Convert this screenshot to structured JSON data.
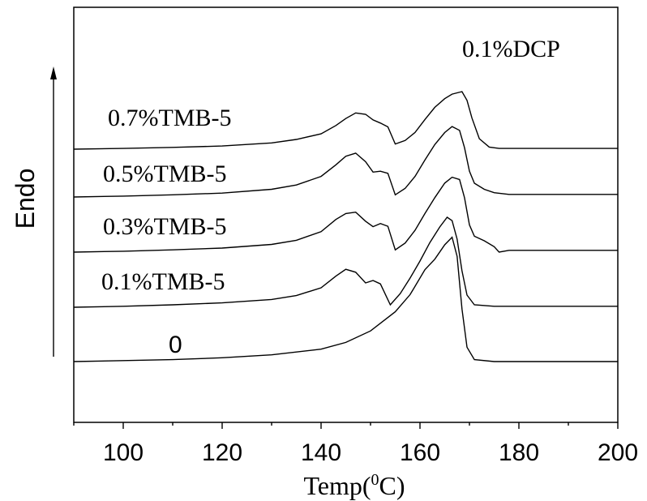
{
  "chart_data": {
    "type": "line",
    "title": "0.1%DCP",
    "xlabel_base": "Temp(",
    "xlabel_sup": "0",
    "xlabel_end": "C)",
    "ylabel": "Endo",
    "xlim": [
      90,
      200
    ],
    "xticks": [
      100,
      120,
      140,
      160,
      180,
      200
    ],
    "y_ticks_shown": false,
    "series": [
      {
        "name": "0",
        "points": [
          [
            90,
            0.0
          ],
          [
            100,
            0.01
          ],
          [
            110,
            0.02
          ],
          [
            120,
            0.04
          ],
          [
            130,
            0.07
          ],
          [
            140,
            0.13
          ],
          [
            145,
            0.2
          ],
          [
            150,
            0.32
          ],
          [
            155,
            0.52
          ],
          [
            158,
            0.7
          ],
          [
            161,
            0.96
          ],
          [
            163,
            1.07
          ],
          [
            165,
            1.22
          ],
          [
            166.5,
            1.3
          ],
          [
            167.5,
            1.1
          ],
          [
            168.5,
            0.55
          ],
          [
            169.5,
            0.15
          ],
          [
            171,
            0.02
          ],
          [
            175,
            0.0
          ],
          [
            180,
            0.0
          ],
          [
            190,
            0.0
          ],
          [
            200,
            0.0
          ]
        ]
      },
      {
        "name": "0.1%TMB-5",
        "points": [
          [
            90,
            0.0
          ],
          [
            100,
            0.02
          ],
          [
            110,
            0.05
          ],
          [
            120,
            0.09
          ],
          [
            130,
            0.16
          ],
          [
            135,
            0.24
          ],
          [
            140,
            0.4
          ],
          [
            143,
            0.64
          ],
          [
            145,
            0.78
          ],
          [
            147,
            0.72
          ],
          [
            149,
            0.5
          ],
          [
            150.5,
            0.55
          ],
          [
            152,
            0.48
          ],
          [
            154,
            0.05
          ],
          [
            156,
            0.28
          ],
          [
            158,
            0.6
          ],
          [
            160,
            0.95
          ],
          [
            162,
            1.33
          ],
          [
            164,
            1.65
          ],
          [
            165.5,
            1.85
          ],
          [
            166.5,
            1.78
          ],
          [
            167.5,
            1.4
          ],
          [
            168.5,
            0.75
          ],
          [
            169.5,
            0.25
          ],
          [
            171,
            0.05
          ],
          [
            175,
            0.02
          ],
          [
            180,
            0.02
          ],
          [
            190,
            0.02
          ],
          [
            200,
            0.02
          ]
        ]
      },
      {
        "name": "0.3%TMB-5",
        "points": [
          [
            90,
            0.0
          ],
          [
            100,
            0.02
          ],
          [
            110,
            0.05
          ],
          [
            120,
            0.09
          ],
          [
            130,
            0.17
          ],
          [
            135,
            0.26
          ],
          [
            140,
            0.45
          ],
          [
            143,
            0.72
          ],
          [
            145,
            0.85
          ],
          [
            147,
            0.88
          ],
          [
            149,
            0.68
          ],
          [
            150.5,
            0.56
          ],
          [
            152,
            0.63
          ],
          [
            153.5,
            0.57
          ],
          [
            155,
            0.05
          ],
          [
            157,
            0.2
          ],
          [
            159,
            0.48
          ],
          [
            161,
            0.85
          ],
          [
            163,
            1.2
          ],
          [
            165,
            1.52
          ],
          [
            166.5,
            1.65
          ],
          [
            168,
            1.6
          ],
          [
            169,
            1.2
          ],
          [
            170,
            0.6
          ],
          [
            171,
            0.35
          ],
          [
            173,
            0.25
          ],
          [
            175,
            0.12
          ],
          [
            176,
            0.0
          ],
          [
            178,
            0.04
          ],
          [
            185,
            0.04
          ],
          [
            190,
            0.04
          ],
          [
            200,
            0.04
          ]
        ]
      },
      {
        "name": "0.5%TMB-5",
        "points": [
          [
            90,
            0.0
          ],
          [
            100,
            0.02
          ],
          [
            110,
            0.05
          ],
          [
            120,
            0.09
          ],
          [
            130,
            0.18
          ],
          [
            135,
            0.28
          ],
          [
            140,
            0.48
          ],
          [
            143,
            0.75
          ],
          [
            145,
            0.95
          ],
          [
            147,
            1.02
          ],
          [
            149,
            0.82
          ],
          [
            150.5,
            0.58
          ],
          [
            152,
            0.6
          ],
          [
            153.5,
            0.55
          ],
          [
            155,
            0.05
          ],
          [
            157,
            0.2
          ],
          [
            159,
            0.48
          ],
          [
            161,
            0.86
          ],
          [
            163,
            1.22
          ],
          [
            165,
            1.5
          ],
          [
            166.5,
            1.64
          ],
          [
            168,
            1.55
          ],
          [
            169,
            1.15
          ],
          [
            170,
            0.6
          ],
          [
            171,
            0.32
          ],
          [
            173,
            0.18
          ],
          [
            175,
            0.1
          ],
          [
            178,
            0.06
          ],
          [
            180,
            0.06
          ],
          [
            190,
            0.06
          ],
          [
            200,
            0.06
          ]
        ]
      },
      {
        "name": "0.7%TMB-5",
        "points": [
          [
            90,
            0.0
          ],
          [
            100,
            0.02
          ],
          [
            110,
            0.05
          ],
          [
            120,
            0.09
          ],
          [
            130,
            0.18
          ],
          [
            135,
            0.28
          ],
          [
            140,
            0.44
          ],
          [
            143,
            0.68
          ],
          [
            145,
            0.88
          ],
          [
            147,
            1.04
          ],
          [
            149,
            1.0
          ],
          [
            150.5,
            0.84
          ],
          [
            152,
            0.75
          ],
          [
            153.5,
            0.64
          ],
          [
            155,
            0.15
          ],
          [
            157,
            0.25
          ],
          [
            159,
            0.48
          ],
          [
            161,
            0.85
          ],
          [
            163,
            1.2
          ],
          [
            165,
            1.45
          ],
          [
            166.5,
            1.58
          ],
          [
            168.5,
            1.65
          ],
          [
            169.5,
            1.4
          ],
          [
            170.5,
            0.9
          ],
          [
            172,
            0.3
          ],
          [
            174,
            0.06
          ],
          [
            176,
            0.02
          ],
          [
            180,
            0.02
          ],
          [
            190,
            0.02
          ],
          [
            200,
            0.02
          ]
        ]
      }
    ],
    "annotations": [
      "0.1%DCP"
    ]
  }
}
